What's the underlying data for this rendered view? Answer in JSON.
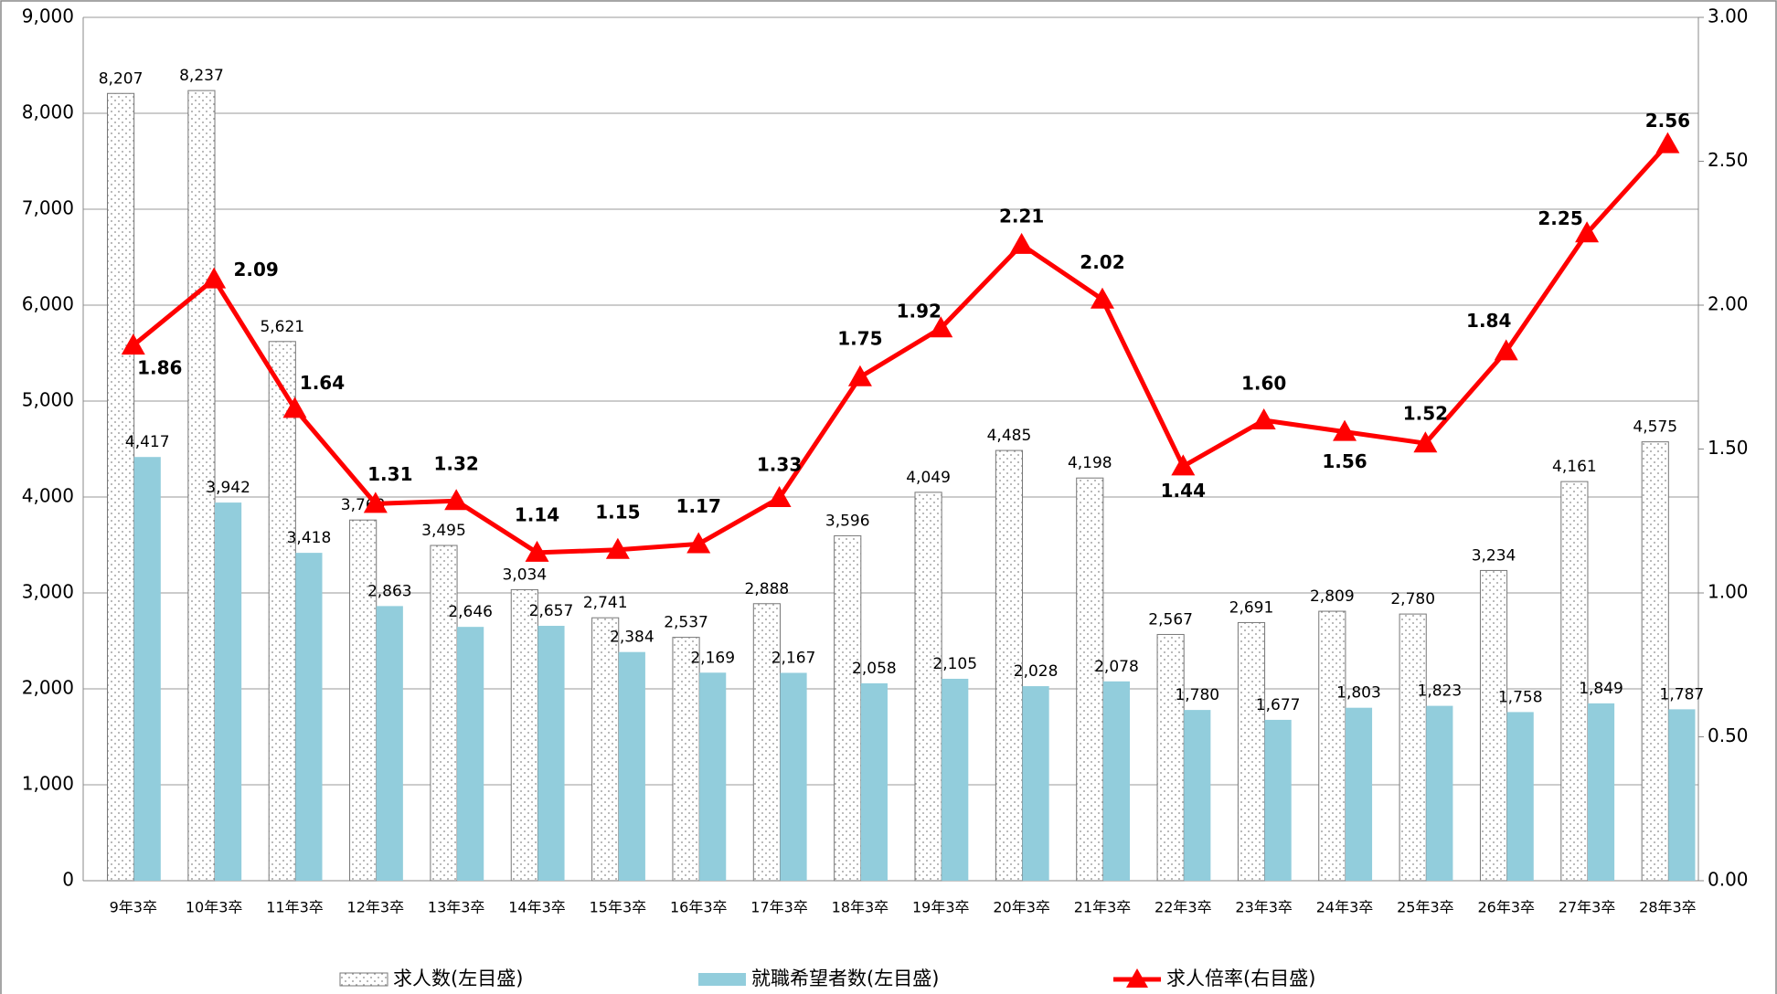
{
  "chart_data": {
    "type": "bar-line",
    "categories": [
      "9年3卒",
      "10年3卒",
      "11年3卒",
      "12年3卒",
      "13年3卒",
      "14年3卒",
      "15年3卒",
      "16年3卒",
      "17年3卒",
      "18年3卒",
      "19年3卒",
      "20年3卒",
      "21年3卒",
      "22年3卒",
      "23年3卒",
      "24年3卒",
      "25年3卒",
      "26年3卒",
      "27年3卒",
      "28年3卒"
    ],
    "series": [
      {
        "name": "求人数(左目盛)",
        "type": "bar",
        "color": "#ffffff",
        "pattern": "dots",
        "values": [
          8207,
          8237,
          5621,
          3760,
          3495,
          3034,
          2741,
          2537,
          2888,
          3596,
          4049,
          4485,
          4198,
          2567,
          2691,
          2809,
          2780,
          3234,
          4161,
          4575
        ],
        "value_labels": [
          "8,207",
          "8,237",
          "5,621",
          "3,760",
          "3,495",
          "3,034",
          "2,741",
          "2,537",
          "2,888",
          "3,596",
          "4,049",
          "4,485",
          "4,198",
          "2,567",
          "2,691",
          "2,809",
          "2,780",
          "3,234",
          "4,161",
          "4,575"
        ]
      },
      {
        "name": "就職希望者数(左目盛)",
        "type": "bar",
        "color": "#92cddc",
        "values": [
          4417,
          3942,
          3418,
          2863,
          2646,
          2657,
          2384,
          2169,
          2167,
          2058,
          2105,
          2028,
          2078,
          1780,
          1677,
          1803,
          1823,
          1758,
          1849,
          1787
        ],
        "value_labels": [
          "4,417",
          "3,942",
          "3,418",
          "2,863",
          "2,646",
          "2,657",
          "2,384",
          "2,169",
          "2,167",
          "2,058",
          "2,105",
          "2,028",
          "2,078",
          "1,780",
          "1,677",
          "1,803",
          "1,823",
          "1,758",
          "1,849",
          "1,787"
        ]
      },
      {
        "name": "求人倍率(右目盛)",
        "type": "line",
        "axis": "y2",
        "color": "#ff0000",
        "values": [
          1.86,
          2.09,
          1.64,
          1.31,
          1.32,
          1.14,
          1.15,
          1.17,
          1.33,
          1.75,
          1.92,
          2.21,
          2.02,
          1.44,
          1.6,
          1.56,
          1.52,
          1.84,
          2.25,
          2.56
        ],
        "value_labels": [
          "1.86",
          "2.09",
          "1.64",
          "1.31",
          "1.32",
          "1.14",
          "1.15",
          "1.17",
          "1.33",
          "1.75",
          "1.92",
          "2.21",
          "2.02",
          "1.44",
          "1.60",
          "1.56",
          "1.52",
          "1.84",
          "2.25",
          "2.56"
        ]
      }
    ],
    "ylim": [
      0,
      9000
    ],
    "yticks": [
      0,
      {
        "value": 1000,
        "label": "1,000"
      },
      {
        "value": 2000,
        "label": "2,000"
      },
      {
        "value": 3000,
        "label": "3,000"
      },
      {
        "value": 4000,
        "label": "4,000"
      },
      {
        "value": 5000,
        "label": "5,000"
      },
      {
        "value": 6000,
        "label": "6,000"
      },
      {
        "value": 7000,
        "label": "7,000"
      },
      {
        "value": 8000,
        "label": "8,000"
      },
      {
        "value": 9000,
        "label": "9,000"
      }
    ],
    "y2lim": [
      0,
      3
    ],
    "y2ticks": [
      {
        "value": 0,
        "label": "0.00"
      },
      {
        "value": 0.5,
        "label": "0.50"
      },
      {
        "value": 1,
        "label": "1.00"
      },
      {
        "value": 1.5,
        "label": "1.50"
      },
      {
        "value": 2,
        "label": "2.00"
      },
      {
        "value": 2.5,
        "label": "2.50"
      },
      {
        "value": 3,
        "label": "3.00"
      }
    ],
    "grid": true,
    "legend": "bottom"
  }
}
